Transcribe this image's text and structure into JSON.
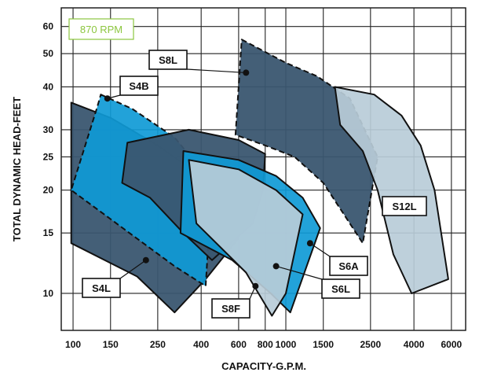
{
  "chart_data": {
    "type": "area",
    "title": "",
    "speed_label": "870 RPM",
    "xlabel": "CAPACITY-G.P.M.",
    "ylabel": "TOTAL DYNAMIC HEAD-FEET",
    "xscale": "log",
    "yscale": "log",
    "xlim": [
      88,
      7000
    ],
    "ylim": [
      7.8,
      68
    ],
    "x_ticks": [
      "100",
      "150",
      "250",
      "400",
      "600",
      "800",
      "1000",
      "1500",
      "2500",
      "4000",
      "6000"
    ],
    "y_ticks": [
      "10",
      "15",
      "20",
      "25",
      "30",
      "40",
      "50",
      "60"
    ],
    "grid": true,
    "colors": {
      "dark": "#3a5670",
      "light": "#b9ccd8",
      "blue": "#0f9ad6",
      "outline": "#111111"
    },
    "series": [
      {
        "name": "S4L",
        "fill": "dark",
        "points": [
          [
            98,
            36
          ],
          [
            150,
            32.5
          ],
          [
            250,
            27
          ],
          [
            400,
            22
          ],
          [
            550,
            16
          ],
          [
            600,
            14.5
          ],
          [
            420,
            11
          ],
          [
            300,
            8.8
          ],
          [
            200,
            11.2
          ],
          [
            98,
            14
          ]
        ]
      },
      {
        "name": "S4B",
        "fill": "blue",
        "dashed": true,
        "points": [
          [
            135,
            38
          ],
          [
            190,
            34.5
          ],
          [
            300,
            28.5
          ],
          [
            450,
            21
          ],
          [
            420,
            10.5
          ],
          [
            300,
            12
          ],
          [
            98,
            20
          ],
          [
            130,
            35
          ]
        ]
      },
      {
        "name": "S8L",
        "fill": "dark",
        "dashed": true,
        "points": [
          [
            620,
            55
          ],
          [
            1000,
            47
          ],
          [
            1400,
            43
          ],
          [
            2000,
            37
          ],
          [
            2700,
            25
          ],
          [
            2300,
            14
          ],
          [
            1500,
            21
          ],
          [
            1100,
            25
          ],
          [
            800,
            27
          ],
          [
            580,
            29
          ]
        ]
      },
      {
        "name": "S8F",
        "fill": "dark",
        "points": [
          [
            170,
            21
          ],
          [
            180,
            27.5
          ],
          [
            350,
            30
          ],
          [
            600,
            28
          ],
          [
            800,
            25.5
          ],
          [
            780,
            20
          ],
          [
            700,
            16
          ],
          [
            450,
            12.5
          ],
          [
            330,
            15
          ],
          [
            230,
            19
          ]
        ]
      },
      {
        "name": "S6A",
        "fill": "blue",
        "points": [
          [
            330,
            26
          ],
          [
            600,
            24.5
          ],
          [
            900,
            22
          ],
          [
            1200,
            19
          ],
          [
            1450,
            15.5
          ],
          [
            1050,
            8.8
          ],
          [
            850,
            10
          ],
          [
            560,
            12.5
          ],
          [
            320,
            15
          ]
        ]
      },
      {
        "name": "S6L",
        "fill": "light",
        "points": [
          [
            350,
            24.5
          ],
          [
            600,
            23
          ],
          [
            900,
            20
          ],
          [
            1200,
            17
          ],
          [
            1000,
            10
          ],
          [
            860,
            8.6
          ],
          [
            650,
            11.5
          ],
          [
            380,
            16
          ]
        ]
      },
      {
        "name": "S12L",
        "fill": "light",
        "points": [
          [
            1700,
            40
          ],
          [
            2600,
            38
          ],
          [
            3500,
            33
          ],
          [
            4300,
            27
          ],
          [
            5000,
            20
          ],
          [
            5800,
            11
          ],
          [
            3900,
            10
          ],
          [
            3200,
            13
          ],
          [
            2700,
            20
          ],
          [
            2300,
            26
          ],
          [
            1800,
            31
          ]
        ]
      }
    ],
    "annotations": [
      {
        "text": "S8L",
        "marker": [
          650,
          44
        ]
      },
      {
        "text": "S4B",
        "marker": [
          145,
          37
        ]
      },
      {
        "text": "S12L"
      },
      {
        "text": "S6A",
        "marker": [
          1300,
          14
        ]
      },
      {
        "text": "S6L",
        "marker": [
          900,
          12
        ]
      },
      {
        "text": "S8F",
        "marker": [
          720,
          10.5
        ]
      },
      {
        "text": "S4L",
        "marker": [
          220,
          12.5
        ]
      }
    ]
  }
}
